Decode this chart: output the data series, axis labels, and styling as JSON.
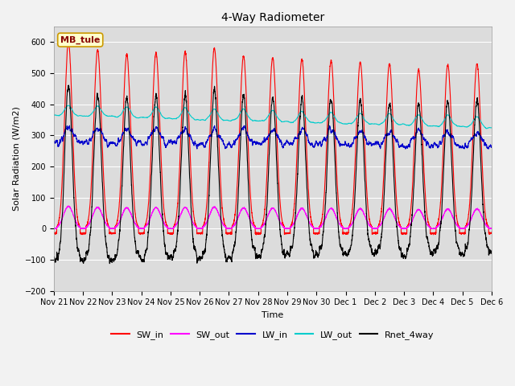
{
  "title": "4-Way Radiometer",
  "xlabel": "Time",
  "ylabel": "Solar Radiation (W/m2)",
  "ylim": [
    -200,
    650
  ],
  "yticks": [
    -200,
    -100,
    0,
    100,
    200,
    300,
    400,
    500,
    600
  ],
  "bg_color": "#dcdcdc",
  "fig_bg_color": "#f2f2f2",
  "annotation_label": "MB_tule",
  "annotation_box_color": "#ffffcc",
  "annotation_box_edge": "#cc9900",
  "series": {
    "SW_in": {
      "color": "#ff0000",
      "lw": 0.8
    },
    "SW_out": {
      "color": "#ff00ff",
      "lw": 0.8
    },
    "LW_in": {
      "color": "#0000cc",
      "lw": 0.8
    },
    "LW_out": {
      "color": "#00cccc",
      "lw": 0.8
    },
    "Rnet_4way": {
      "color": "#000000",
      "lw": 0.8
    }
  },
  "x_tick_labels": [
    "Nov 21",
    "Nov 22",
    "Nov 23",
    "Nov 24",
    "Nov 25",
    "Nov 26",
    "Nov 27",
    "Nov 28",
    "Nov 29",
    "Nov 30",
    "Dec 1",
    "Dec 2",
    "Dec 3",
    "Dec 4",
    "Dec 5",
    "Dec 6"
  ],
  "num_days": 15,
  "pts_per_day": 288,
  "figsize": [
    6.4,
    4.8
  ],
  "dpi": 100
}
